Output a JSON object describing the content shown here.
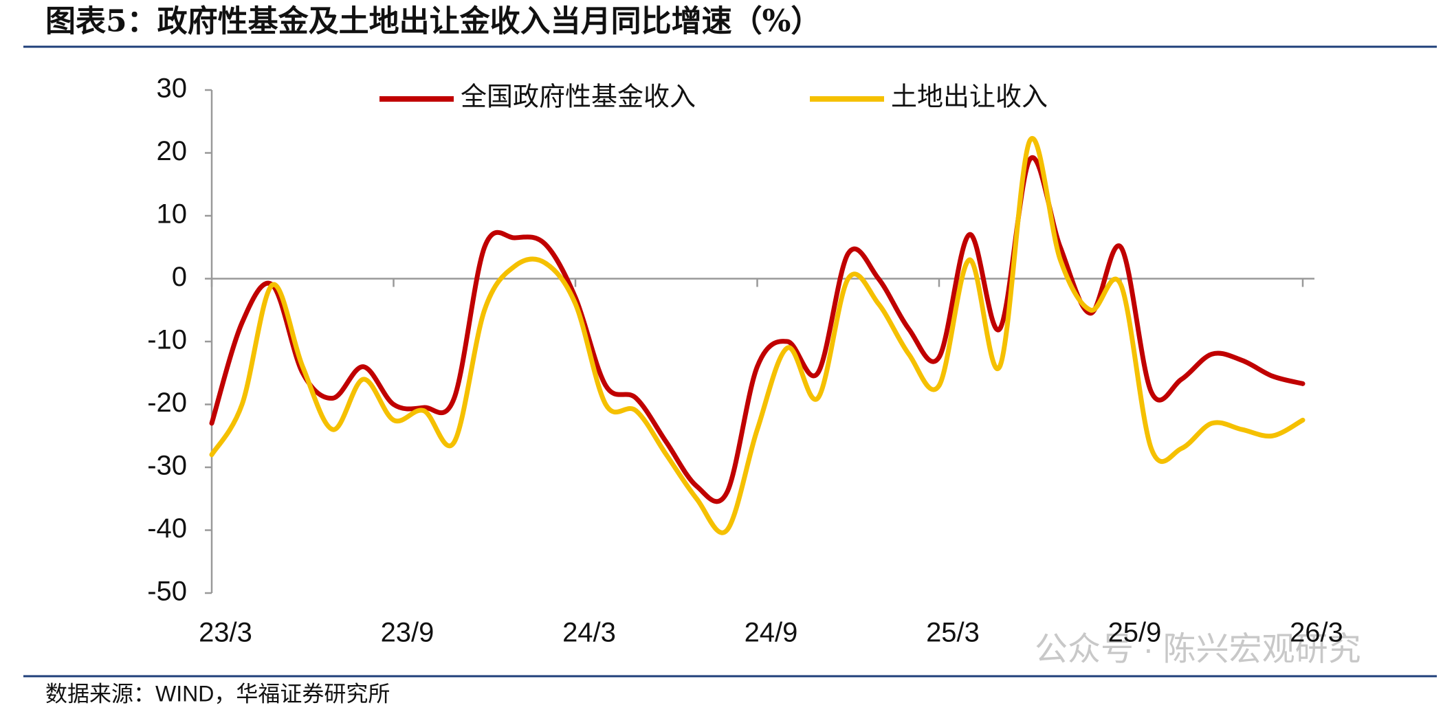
{
  "header": {
    "title": "图表5：政府性基金及土地出让金收入当月同比增速（%）"
  },
  "chart_data": {
    "type": "line",
    "categories": [
      "23/3",
      null,
      null,
      null,
      null,
      null,
      "23/9",
      null,
      null,
      null,
      null,
      null,
      "24/3",
      null,
      null,
      null,
      null,
      null,
      "24/9",
      null,
      null,
      null,
      null,
      null,
      "25/3",
      null,
      null,
      null,
      null,
      null,
      "25/9",
      null,
      null,
      null,
      null,
      null,
      "26/3"
    ],
    "series": [
      {
        "name": "全国政府性基金收入",
        "color": "#c00000",
        "values": [
          -23,
          -7,
          -1,
          -15,
          -19,
          -14,
          -20,
          -20.5,
          -19,
          5,
          6.5,
          5.5,
          -3,
          -17,
          -19,
          -26,
          -33,
          -34,
          -14,
          -10,
          -15,
          4,
          0,
          -8,
          -12.5,
          7,
          -8,
          19,
          5,
          -5.5,
          5,
          -18,
          -16,
          -12,
          -13,
          -15.5,
          -16.7
        ]
      },
      {
        "name": "土地出让收入",
        "color": "#f5c000",
        "values": [
          -28,
          -20,
          -1,
          -14,
          -24,
          -16,
          -22.5,
          -21,
          -26,
          -5,
          2,
          2.5,
          -4,
          -20,
          -21,
          -28,
          -35,
          -40,
          -24,
          -11,
          -19,
          0,
          -4,
          -12,
          -17,
          3,
          -14,
          22,
          3,
          -5,
          -1,
          -27,
          -27,
          -23,
          -24,
          -25,
          -22.5
        ]
      }
    ],
    "ylim": [
      -50,
      30
    ],
    "yticks": [
      -50,
      -40,
      -30,
      -20,
      -10,
      0,
      10,
      20,
      30
    ],
    "grid": false,
    "legend": "top"
  },
  "footer": {
    "source": "数据来源：WIND，华福证券研究所",
    "watermark": "公众号 · 陈兴宏观研究"
  }
}
